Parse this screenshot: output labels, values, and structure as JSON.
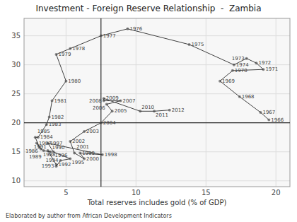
{
  "chart_data": {
    "type": "line",
    "title": "Investment - Foreign Reserve Relationship  -  Zambia",
    "x_label": "Total reserves includes gold (% of GDP)",
    "footnote": "Elaborated by author from African Development Indicators",
    "xlim": [
      2,
      21
    ],
    "ylim": [
      9,
      38
    ],
    "xticks": [
      5,
      10,
      15,
      20
    ],
    "yticks": [
      10,
      15,
      20,
      25,
      30,
      35
    ],
    "grid": true,
    "marker": "circle",
    "color": "#3f3f3f",
    "reference_x": 7.5,
    "reference_y": 20,
    "x": [
      19.5,
      18.9,
      17.4,
      16.0,
      16.9,
      19.1,
      18.6,
      17.9,
      17.0,
      13.8,
      9.4,
      7.5,
      5.3,
      4.3,
      5.0,
      4.0,
      3.8,
      3.6,
      3.0,
      2.8,
      3.1,
      2.9,
      3.2,
      3.4,
      3.9,
      3.7,
      4.3,
      4.3,
      4.6,
      5.3,
      4.1,
      3.7,
      7.6,
      6.0,
      6.3,
      5.6,
      5.3,
      6.3,
      7.5,
      8.3,
      7.9,
      8.9,
      7.7,
      7.7,
      10.3,
      11.3,
      12.4
    ],
    "values": [
      20.5,
      21.8,
      24.5,
      27.2,
      29.0,
      29.2,
      30.3,
      31.1,
      30.0,
      33.5,
      36.2,
      35.0,
      32.8,
      31.8,
      27.2,
      23.8,
      21.0,
      19.7,
      17.5,
      17.5,
      15.8,
      16.5,
      15.5,
      15.2,
      15.0,
      15.2,
      12.8,
      12.5,
      13.5,
      13.8,
      15.0,
      16.5,
      14.5,
      14.8,
      13.8,
      14.8,
      16.8,
      18.5,
      20.0,
      22.0,
      23.2,
      23.8,
      23.8,
      24.2,
      22.0,
      22.0,
      22.2
    ],
    "point_labels": [
      1966,
      1967,
      1968,
      1969,
      1970,
      1971,
      1972,
      1973,
      1974,
      1975,
      1976,
      1977,
      1978,
      1979,
      1980,
      1981,
      1982,
      1983,
      1984,
      1985,
      1986,
      1987,
      1988,
      1989,
      1990,
      1991,
      1992,
      1993,
      1994,
      1995,
      1996,
      1997,
      1998,
      1999,
      2000,
      2001,
      2002,
      2003,
      2004,
      2005,
      2006,
      2007,
      2008,
      2009,
      2010,
      2011,
      2012
    ]
  }
}
